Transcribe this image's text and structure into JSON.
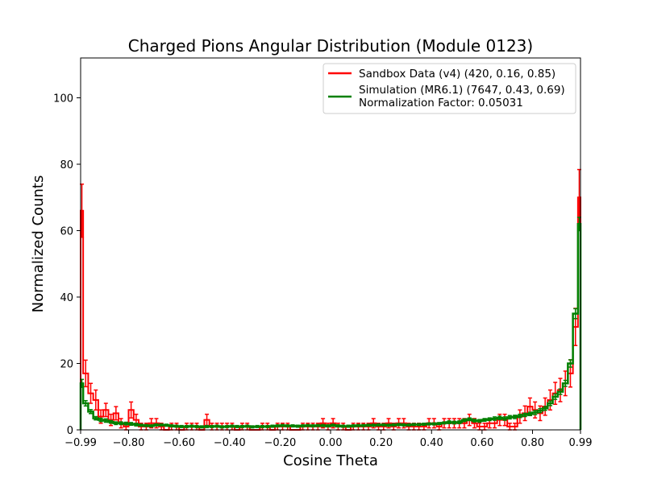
{
  "chart_data": {
    "type": "step",
    "title": "Charged Pions Angular Distribution (Module 0123)",
    "xlabel": "Cosine Theta",
    "ylabel": "Normalized Counts",
    "xlim": [
      -0.99,
      0.99
    ],
    "ylim": [
      0,
      112
    ],
    "xticks": [
      -0.99,
      -0.8,
      -0.6,
      -0.4,
      -0.2,
      0.0,
      0.2,
      0.4,
      0.6,
      0.8,
      0.99
    ],
    "xtick_labels": [
      "−0.99",
      "−0.80",
      "−0.60",
      "−0.40",
      "−0.20",
      "0.00",
      "0.20",
      "0.40",
      "0.60",
      "0.80",
      "0.99"
    ],
    "yticks": [
      0,
      20,
      40,
      60,
      80,
      100
    ],
    "ytick_labels": [
      "0",
      "20",
      "40",
      "60",
      "80",
      "100"
    ],
    "grid": false,
    "legend": {
      "placement": "top-right",
      "entries": [
        {
          "label": "Sandbox Data (v4) (420, 0.16, 0.85)",
          "color": "#ff0000"
        },
        {
          "label": "Simulation (MR6.1) (7647, 0.43, 0.69)",
          "color": "#008000"
        }
      ],
      "note": "Normalization Factor: 0.05031"
    },
    "series": [
      {
        "name": "Sandbox Data (v4) (420, 0.16, 0.85)",
        "color": "#ff0000",
        "x": [
          -0.99,
          -0.98,
          -0.96,
          -0.94,
          -0.92,
          -0.9,
          -0.88,
          -0.86,
          -0.84,
          -0.82,
          -0.8,
          -0.78,
          -0.76,
          -0.74,
          -0.72,
          -0.7,
          -0.68,
          -0.66,
          -0.64,
          -0.62,
          -0.6,
          -0.58,
          -0.56,
          -0.54,
          -0.52,
          -0.5,
          -0.48,
          -0.46,
          -0.44,
          -0.42,
          -0.4,
          -0.38,
          -0.36,
          -0.34,
          -0.32,
          -0.3,
          -0.28,
          -0.26,
          -0.24,
          -0.22,
          -0.2,
          -0.18,
          -0.16,
          -0.14,
          -0.12,
          -0.1,
          -0.08,
          -0.06,
          -0.04,
          -0.02,
          0.0,
          0.02,
          0.04,
          0.06,
          0.08,
          0.1,
          0.12,
          0.14,
          0.16,
          0.18,
          0.2,
          0.22,
          0.24,
          0.26,
          0.28,
          0.3,
          0.32,
          0.34,
          0.36,
          0.38,
          0.4,
          0.42,
          0.44,
          0.46,
          0.48,
          0.5,
          0.52,
          0.54,
          0.56,
          0.58,
          0.6,
          0.62,
          0.64,
          0.66,
          0.68,
          0.7,
          0.72,
          0.74,
          0.76,
          0.78,
          0.8,
          0.82,
          0.84,
          0.86,
          0.88,
          0.9,
          0.92,
          0.94,
          0.96,
          0.98
        ],
        "values": [
          66,
          17,
          11,
          9,
          4,
          6,
          3,
          5,
          2,
          1,
          6,
          3,
          1,
          1,
          2,
          2,
          1,
          0,
          1,
          1,
          0,
          1,
          1,
          1,
          0,
          3,
          1,
          1,
          1,
          1,
          1,
          0,
          1,
          1,
          0,
          0,
          1,
          1,
          0,
          1,
          1,
          1,
          0,
          0,
          1,
          1,
          1,
          1,
          2,
          1,
          2,
          1,
          1,
          0,
          1,
          1,
          1,
          1,
          2,
          1,
          1,
          2,
          1,
          2,
          2,
          1,
          1,
          1,
          1,
          2,
          2,
          1,
          2,
          2,
          2,
          2,
          2,
          3,
          2,
          1,
          1,
          2,
          2,
          3,
          3,
          1,
          1,
          4,
          5,
          7,
          6,
          5,
          7,
          9,
          11,
          12,
          14,
          17,
          31,
          70
        ],
        "errors": [
          8,
          4,
          3,
          3,
          2,
          2,
          1.7,
          2,
          1.4,
          1,
          2.4,
          1.7,
          1,
          1,
          1.4,
          1.4,
          1,
          0,
          1,
          1,
          0,
          1,
          1,
          1,
          0,
          1.7,
          1,
          1,
          1,
          1,
          1,
          0,
          1,
          1,
          0,
          0,
          1,
          1,
          0,
          1,
          1,
          1,
          0,
          0,
          1,
          1,
          1,
          1,
          1.4,
          1,
          1.4,
          1,
          1,
          0,
          1,
          1,
          1,
          1,
          1.4,
          1,
          1,
          1.4,
          1,
          1.4,
          1.4,
          1,
          1,
          1,
          1,
          1.4,
          1.4,
          1,
          1.4,
          1.4,
          1.4,
          1.4,
          1.4,
          1.7,
          1.4,
          1,
          1,
          1.4,
          1.4,
          1.7,
          1.7,
          1,
          1,
          2,
          2.2,
          2.6,
          2.4,
          2.2,
          2.6,
          3,
          3.3,
          3.5,
          3.7,
          4.1,
          5.6,
          8.4
        ]
      },
      {
        "name": "Simulation (MR6.1) (7647, 0.43, 0.69)",
        "color": "#008000",
        "x": [
          -0.99,
          -0.98,
          -0.96,
          -0.94,
          -0.92,
          -0.9,
          -0.88,
          -0.86,
          -0.84,
          -0.82,
          -0.8,
          -0.78,
          -0.76,
          -0.74,
          -0.72,
          -0.7,
          -0.68,
          -0.66,
          -0.64,
          -0.62,
          -0.6,
          -0.58,
          -0.56,
          -0.54,
          -0.52,
          -0.5,
          -0.48,
          -0.46,
          -0.44,
          -0.42,
          -0.4,
          -0.38,
          -0.36,
          -0.34,
          -0.32,
          -0.3,
          -0.28,
          -0.26,
          -0.24,
          -0.22,
          -0.2,
          -0.18,
          -0.16,
          -0.14,
          -0.12,
          -0.1,
          -0.08,
          -0.06,
          -0.04,
          -0.02,
          0.0,
          0.02,
          0.04,
          0.06,
          0.08,
          0.1,
          0.12,
          0.14,
          0.16,
          0.18,
          0.2,
          0.22,
          0.24,
          0.26,
          0.28,
          0.3,
          0.32,
          0.34,
          0.36,
          0.38,
          0.4,
          0.42,
          0.44,
          0.46,
          0.48,
          0.5,
          0.52,
          0.54,
          0.56,
          0.58,
          0.6,
          0.62,
          0.64,
          0.66,
          0.68,
          0.7,
          0.72,
          0.74,
          0.76,
          0.78,
          0.8,
          0.82,
          0.84,
          0.86,
          0.88,
          0.9,
          0.92,
          0.94,
          0.96,
          0.98
        ],
        "values": [
          14,
          8,
          5.5,
          3.5,
          3,
          2.8,
          2.4,
          2,
          2,
          1.9,
          1.8,
          1.6,
          1.4,
          1.3,
          1.2,
          1.5,
          1.5,
          1.4,
          1.2,
          1.1,
          1.0,
          1.0,
          1.1,
          1.0,
          0.9,
          1.0,
          1.0,
          1.1,
          0.9,
          1.0,
          1.1,
          1.0,
          1.0,
          1.1,
          0.9,
          1.0,
          1.0,
          1.0,
          1.1,
          1.2,
          1.3,
          1.2,
          1.2,
          1.1,
          1.2,
          1.3,
          1.2,
          1.3,
          1.3,
          1.2,
          1.4,
          1.2,
          1.1,
          1.1,
          1.2,
          1.3,
          1.3,
          1.4,
          1.4,
          1.5,
          1.5,
          1.4,
          1.5,
          1.6,
          1.5,
          1.5,
          1.6,
          1.6,
          1.7,
          1.8,
          1.8,
          1.9,
          2.1,
          2.3,
          2.2,
          2.3,
          2.9,
          3.2,
          2.8,
          2.7,
          3.0,
          3.2,
          3.4,
          3.6,
          3.4,
          3.8,
          3.9,
          4.2,
          4.5,
          4.8,
          5.2,
          5.8,
          6.5,
          8,
          10,
          11.5,
          14,
          20,
          35,
          62
        ],
        "errors": [
          1.2,
          0.8,
          0.6,
          0.5,
          0.5,
          0.5,
          0.4,
          0.4,
          0.4,
          0.4,
          0.4,
          0.4,
          0.3,
          0.3,
          0.3,
          0.3,
          0.3,
          0.3,
          0.3,
          0.3,
          0.3,
          0.3,
          0.3,
          0.3,
          0.3,
          0.3,
          0.3,
          0.3,
          0.3,
          0.3,
          0.3,
          0.3,
          0.3,
          0.3,
          0.3,
          0.3,
          0.3,
          0.3,
          0.3,
          0.3,
          0.3,
          0.3,
          0.3,
          0.3,
          0.3,
          0.3,
          0.3,
          0.3,
          0.3,
          0.3,
          0.3,
          0.3,
          0.3,
          0.3,
          0.3,
          0.3,
          0.3,
          0.3,
          0.3,
          0.3,
          0.3,
          0.3,
          0.3,
          0.3,
          0.3,
          0.3,
          0.3,
          0.3,
          0.3,
          0.3,
          0.3,
          0.3,
          0.3,
          0.4,
          0.4,
          0.4,
          0.4,
          0.4,
          0.4,
          0.4,
          0.4,
          0.4,
          0.5,
          0.5,
          0.5,
          0.5,
          0.5,
          0.5,
          0.5,
          0.5,
          0.6,
          0.6,
          0.6,
          0.7,
          0.8,
          0.8,
          0.9,
          1.1,
          1.5,
          2.0
        ]
      }
    ]
  },
  "colors": {
    "data": "#ff0000",
    "simulation": "#008000",
    "axis": "#000000",
    "legend_border": "#cccccc"
  }
}
